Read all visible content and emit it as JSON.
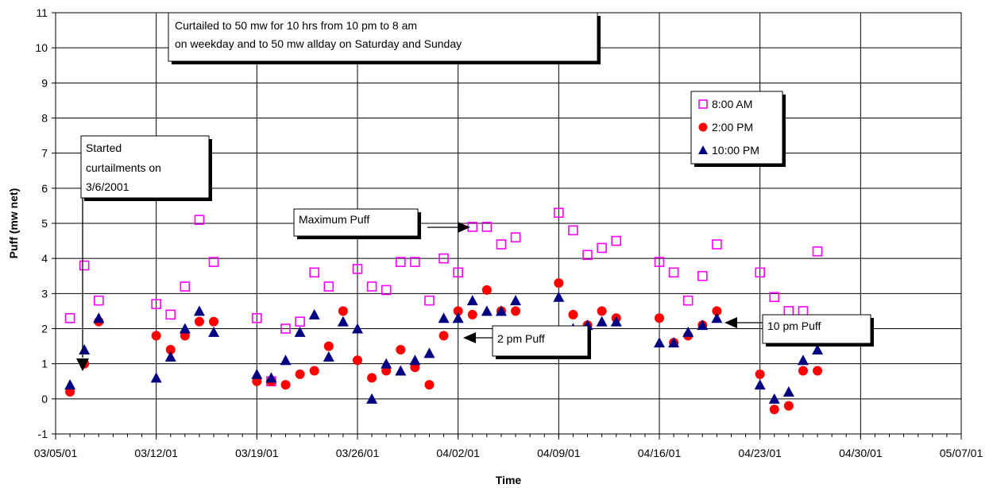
{
  "chart_data": {
    "type": "scatter",
    "xlabel": "Time",
    "ylabel": "Puff (mw net)",
    "ylim": [
      -1,
      11
    ],
    "y_ticks": [
      "-1",
      "0",
      "1",
      "2",
      "3",
      "4",
      "5",
      "6",
      "7",
      "8",
      "9",
      "10",
      "11"
    ],
    "x_tick_labels": [
      "03/05/01",
      "03/12/01",
      "03/19/01",
      "03/26/01",
      "04/02/01",
      "04/09/01",
      "04/16/01",
      "04/23/01",
      "04/30/01",
      "05/07/01"
    ],
    "grid": true,
    "legend_position": "right",
    "series": [
      {
        "name": "8:00 AM",
        "marker": "square-open",
        "color": "#ff00ff",
        "points": [
          [
            "2001-03-06",
            2.3
          ],
          [
            "2001-03-07",
            3.8
          ],
          [
            "2001-03-08",
            2.8
          ],
          [
            "2001-03-12",
            2.7
          ],
          [
            "2001-03-13",
            2.4
          ],
          [
            "2001-03-14",
            3.2
          ],
          [
            "2001-03-15",
            5.1
          ],
          [
            "2001-03-16",
            3.9
          ],
          [
            "2001-03-19",
            2.3
          ],
          [
            "2001-03-20",
            0.5
          ],
          [
            "2001-03-21",
            2.0
          ],
          [
            "2001-03-22",
            2.2
          ],
          [
            "2001-03-23",
            3.6
          ],
          [
            "2001-03-24",
            3.2
          ],
          [
            "2001-03-26",
            3.7
          ],
          [
            "2001-03-27",
            3.2
          ],
          [
            "2001-03-28",
            3.1
          ],
          [
            "2001-03-29",
            3.9
          ],
          [
            "2001-03-30",
            3.9
          ],
          [
            "2001-03-31",
            2.8
          ],
          [
            "2001-04-01",
            4.0
          ],
          [
            "2001-04-02",
            3.6
          ],
          [
            "2001-04-03",
            4.9
          ],
          [
            "2001-04-04",
            4.9
          ],
          [
            "2001-04-05",
            4.4
          ],
          [
            "2001-04-06",
            4.6
          ],
          [
            "2001-04-09",
            5.3
          ],
          [
            "2001-04-10",
            4.8
          ],
          [
            "2001-04-11",
            4.1
          ],
          [
            "2001-04-12",
            4.3
          ],
          [
            "2001-04-13",
            4.5
          ],
          [
            "2001-04-16",
            3.9
          ],
          [
            "2001-04-17",
            3.6
          ],
          [
            "2001-04-18",
            2.8
          ],
          [
            "2001-04-19",
            3.5
          ],
          [
            "2001-04-20",
            4.4
          ],
          [
            "2001-04-23",
            3.6
          ],
          [
            "2001-04-24",
            2.9
          ],
          [
            "2001-04-25",
            2.5
          ],
          [
            "2001-04-26",
            2.5
          ],
          [
            "2001-04-27",
            4.2
          ]
        ]
      },
      {
        "name": "2:00 PM",
        "marker": "circle",
        "color": "#ff0000",
        "points": [
          [
            "2001-03-06",
            0.2
          ],
          [
            "2001-03-07",
            1.0
          ],
          [
            "2001-03-08",
            2.2
          ],
          [
            "2001-03-12",
            1.8
          ],
          [
            "2001-03-13",
            1.4
          ],
          [
            "2001-03-14",
            1.8
          ],
          [
            "2001-03-15",
            2.2
          ],
          [
            "2001-03-16",
            2.2
          ],
          [
            "2001-03-19",
            0.5
          ],
          [
            "2001-03-20",
            0.5
          ],
          [
            "2001-03-21",
            0.4
          ],
          [
            "2001-03-22",
            0.7
          ],
          [
            "2001-03-23",
            0.8
          ],
          [
            "2001-03-24",
            1.5
          ],
          [
            "2001-03-25",
            2.5
          ],
          [
            "2001-03-26",
            1.1
          ],
          [
            "2001-03-27",
            0.6
          ],
          [
            "2001-03-28",
            0.8
          ],
          [
            "2001-03-29",
            1.4
          ],
          [
            "2001-03-30",
            0.9
          ],
          [
            "2001-03-31",
            0.4
          ],
          [
            "2001-04-01",
            1.8
          ],
          [
            "2001-04-02",
            2.5
          ],
          [
            "2001-04-03",
            2.4
          ],
          [
            "2001-04-04",
            3.1
          ],
          [
            "2001-04-05",
            2.5
          ],
          [
            "2001-04-06",
            2.5
          ],
          [
            "2001-04-09",
            3.3
          ],
          [
            "2001-04-10",
            2.4
          ],
          [
            "2001-04-11",
            2.1
          ],
          [
            "2001-04-12",
            2.5
          ],
          [
            "2001-04-13",
            2.3
          ],
          [
            "2001-04-16",
            2.3
          ],
          [
            "2001-04-17",
            1.6
          ],
          [
            "2001-04-18",
            1.8
          ],
          [
            "2001-04-19",
            2.1
          ],
          [
            "2001-04-20",
            2.5
          ],
          [
            "2001-04-23",
            0.7
          ],
          [
            "2001-04-24",
            -0.3
          ],
          [
            "2001-04-25",
            -0.2
          ],
          [
            "2001-04-26",
            0.8
          ],
          [
            "2001-04-27",
            0.8
          ]
        ]
      },
      {
        "name": "10:00 PM",
        "marker": "triangle",
        "color": "#000080",
        "points": [
          [
            "2001-03-06",
            0.4
          ],
          [
            "2001-03-07",
            1.4
          ],
          [
            "2001-03-08",
            2.3
          ],
          [
            "2001-03-12",
            0.6
          ],
          [
            "2001-03-13",
            1.2
          ],
          [
            "2001-03-14",
            2.0
          ],
          [
            "2001-03-15",
            2.5
          ],
          [
            "2001-03-16",
            1.9
          ],
          [
            "2001-03-19",
            0.7
          ],
          [
            "2001-03-20",
            0.6
          ],
          [
            "2001-03-21",
            1.1
          ],
          [
            "2001-03-22",
            1.9
          ],
          [
            "2001-03-23",
            2.4
          ],
          [
            "2001-03-24",
            1.2
          ],
          [
            "2001-03-25",
            2.2
          ],
          [
            "2001-03-26",
            2.0
          ],
          [
            "2001-03-27",
            0.0
          ],
          [
            "2001-03-28",
            1.0
          ],
          [
            "2001-03-29",
            0.8
          ],
          [
            "2001-03-30",
            1.1
          ],
          [
            "2001-03-31",
            1.3
          ],
          [
            "2001-04-01",
            2.3
          ],
          [
            "2001-04-02",
            2.3
          ],
          [
            "2001-04-03",
            2.8
          ],
          [
            "2001-04-04",
            2.5
          ],
          [
            "2001-04-05",
            2.5
          ],
          [
            "2001-04-06",
            2.8
          ],
          [
            "2001-04-09",
            2.9
          ],
          [
            "2001-04-10",
            2.0
          ],
          [
            "2001-04-11",
            2.1
          ],
          [
            "2001-04-12",
            2.2
          ],
          [
            "2001-04-13",
            2.2
          ],
          [
            "2001-04-16",
            1.6
          ],
          [
            "2001-04-17",
            1.6
          ],
          [
            "2001-04-18",
            1.9
          ],
          [
            "2001-04-19",
            2.1
          ],
          [
            "2001-04-20",
            2.3
          ],
          [
            "2001-04-23",
            0.4
          ],
          [
            "2001-04-24",
            0.0
          ],
          [
            "2001-04-25",
            0.2
          ],
          [
            "2001-04-26",
            1.1
          ],
          [
            "2001-04-27",
            1.4
          ]
        ]
      }
    ],
    "annotations": [
      {
        "lines": [
          "Curtailed to 50 mw for 10 hrs from 10 pm to 8 am",
          "on weekday and to 50 mw allday on Saturday and Sunday"
        ]
      },
      {
        "lines": [
          "Started",
          "curtailments on",
          "3/6/2001"
        ]
      },
      {
        "lines": [
          "Maximum Puff"
        ]
      },
      {
        "lines": [
          "2 pm Puff"
        ]
      },
      {
        "lines": [
          "10 pm Puff"
        ]
      }
    ]
  }
}
